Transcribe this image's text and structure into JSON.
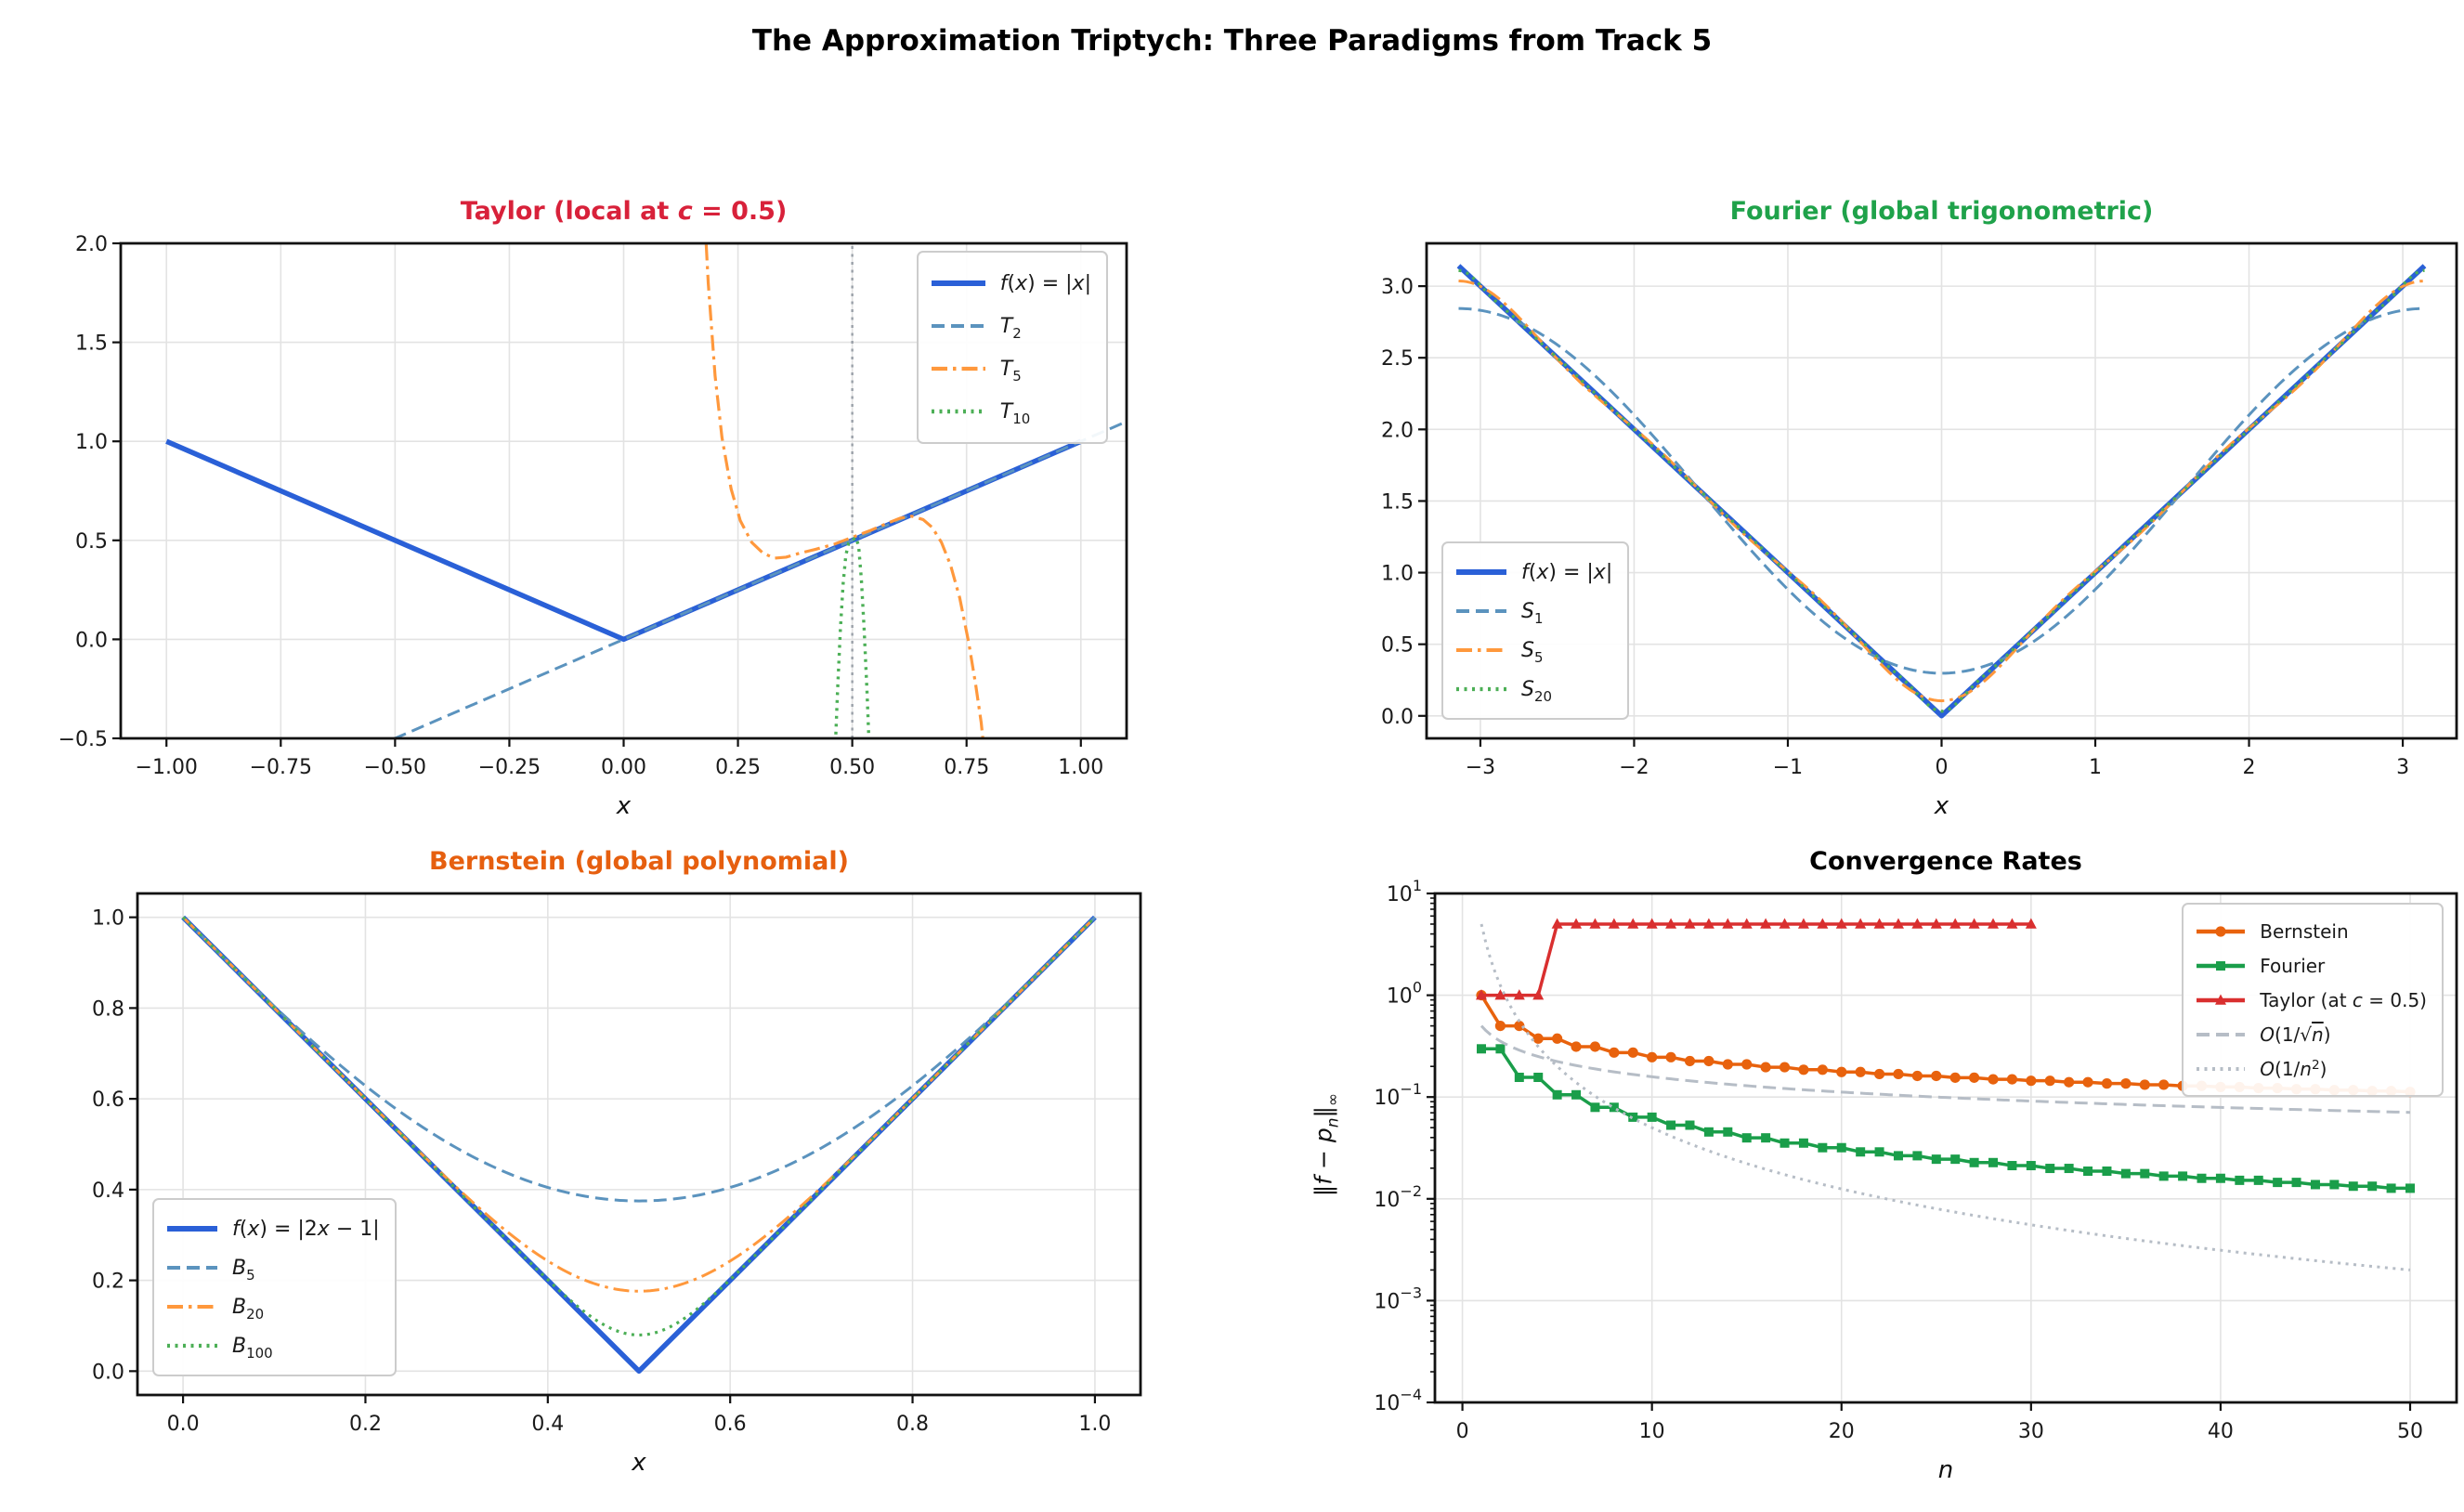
{
  "figure": {
    "title": "The Approximation Triptych: Three Paradigms from Track 5",
    "background": "#ffffff"
  },
  "colors": {
    "f_blue": "#2a60d7",
    "steel_dashed": "#5b93be",
    "orange_dashdot": "#ff983c",
    "green_dotted": "#4caf56",
    "taylor_title_red": "#d8213a",
    "fourier_title_green": "#1fa24a",
    "bernstein_title_orange": "#e65f0f",
    "conv_bernstein": "#e8620d",
    "conv_fourier": "#1a9e4a",
    "conv_taylor": "#d92f2f",
    "guide_gray": "#b6bdc6",
    "vline_gray": "#9aa0a8",
    "grid": "#e3e3e3",
    "spine": "#111111"
  },
  "chart_data": [
    {
      "id": "taylor",
      "type": "line",
      "title_parts": [
        {
          "t": "Taylor (local at "
        },
        {
          "t": "c",
          "italic": true
        },
        {
          "t": " = 0.5)"
        }
      ],
      "title_color": "#d8213a",
      "xlabel_parts": [
        {
          "t": "x",
          "italic": true
        }
      ],
      "xlim": [
        -1.1,
        1.1
      ],
      "ylim": [
        -0.5,
        2.0
      ],
      "xticks": [
        -1.0,
        -0.75,
        -0.5,
        -0.25,
        0.0,
        0.25,
        0.5,
        0.75,
        1.0
      ],
      "xtick_labels": [
        "−1.00",
        "−0.75",
        "−0.50",
        "−0.25",
        "0.00",
        "0.25",
        "0.50",
        "0.75",
        "1.00"
      ],
      "yticks": [
        -0.5,
        0.0,
        0.5,
        1.0,
        1.5,
        2.0
      ],
      "ytick_labels": [
        "−0.5",
        "0.0",
        "0.5",
        "1.0",
        "1.5",
        "2.0"
      ],
      "series": [
        {
          "name": "c-vline",
          "color": "#9aa0a8",
          "style": "dotted",
          "width": 2.4,
          "kind": "points",
          "legend": false,
          "points": [
            [
              0.5,
              -0.5
            ],
            [
              0.5,
              2.0
            ]
          ]
        },
        {
          "name": "f-abs",
          "label_parts": [
            {
              "t": "f",
              "italic": true
            },
            {
              "t": "("
            },
            {
              "t": "x",
              "italic": true
            },
            {
              "t": ") = |"
            },
            {
              "t": "x",
              "italic": true
            },
            {
              "t": "|"
            }
          ],
          "color": "#2a60d7",
          "style": "solid",
          "width": 5.5,
          "kind": "points",
          "points": [
            [
              -1,
              1
            ],
            [
              0,
              0
            ],
            [
              1,
              1
            ]
          ]
        },
        {
          "name": "T2",
          "label_parts": [
            {
              "t": "T",
              "italic": true
            },
            {
              "t": "2",
              "sub": true
            }
          ],
          "color": "#5b93be",
          "style": "dashed",
          "width": 3,
          "kind": "points",
          "points": [
            [
              -0.62,
              -0.62
            ],
            [
              1.1,
              1.1
            ]
          ]
        },
        {
          "name": "T5",
          "label_parts": [
            {
              "t": "T",
              "italic": true
            },
            {
              "t": "5",
              "sub": true
            }
          ],
          "color": "#ff983c",
          "style": "dashdot",
          "width": 3.2,
          "kind": "points",
          "points": [
            [
              0.17,
              2.45
            ],
            [
              0.185,
              1.8
            ],
            [
              0.2,
              1.33
            ],
            [
              0.215,
              1.02
            ],
            [
              0.235,
              0.76
            ],
            [
              0.255,
              0.6
            ],
            [
              0.28,
              0.49
            ],
            [
              0.305,
              0.435
            ],
            [
              0.33,
              0.41
            ],
            [
              0.355,
              0.415
            ],
            [
              0.385,
              0.435
            ],
            [
              0.42,
              0.455
            ],
            [
              0.46,
              0.48
            ],
            [
              0.5,
              0.515
            ],
            [
              0.54,
              0.55
            ],
            [
              0.575,
              0.585
            ],
            [
              0.605,
              0.612
            ],
            [
              0.63,
              0.622
            ],
            [
              0.655,
              0.605
            ],
            [
              0.675,
              0.565
            ],
            [
              0.695,
              0.49
            ],
            [
              0.715,
              0.375
            ],
            [
              0.735,
              0.21
            ],
            [
              0.755,
              -0.02
            ],
            [
              0.77,
              -0.23
            ],
            [
              0.782,
              -0.42
            ],
            [
              0.79,
              -0.6
            ]
          ]
        },
        {
          "name": "T10",
          "label_parts": [
            {
              "t": "T",
              "italic": true
            },
            {
              "t": "10",
              "sub": true
            }
          ],
          "color": "#4caf56",
          "style": "dotted",
          "width": 3.4,
          "kind": "points",
          "points": [
            [
              0.462,
              -0.6
            ],
            [
              0.468,
              -0.25
            ],
            [
              0.474,
              0.05
            ],
            [
              0.48,
              0.28
            ],
            [
              0.486,
              0.425
            ],
            [
              0.492,
              0.485
            ],
            [
              0.5,
              0.5
            ],
            [
              0.508,
              0.515
            ],
            [
              0.514,
              0.47
            ],
            [
              0.52,
              0.3
            ],
            [
              0.526,
              0.05
            ],
            [
              0.532,
              -0.25
            ],
            [
              0.538,
              -0.6
            ]
          ]
        }
      ]
    },
    {
      "id": "fourier",
      "type": "line",
      "title_parts": [
        {
          "t": "Fourier (global trigonometric)"
        }
      ],
      "title_color": "#1fa24a",
      "xlabel_parts": [
        {
          "t": "x",
          "italic": true
        }
      ],
      "xlim": [
        -3.35,
        3.35
      ],
      "ylim": [
        -0.157,
        3.299
      ],
      "xticks": [
        -3,
        -2,
        -1,
        0,
        1,
        2,
        3
      ],
      "xtick_labels": [
        "−3",
        "−2",
        "−1",
        "0",
        "1",
        "2",
        "3"
      ],
      "yticks": [
        0.0,
        0.5,
        1.0,
        1.5,
        2.0,
        2.5,
        3.0
      ],
      "ytick_labels": [
        "0.0",
        "0.5",
        "1.0",
        "1.5",
        "2.0",
        "2.5",
        "3.0"
      ],
      "series": [
        {
          "name": "f-abs",
          "label_parts": [
            {
              "t": "f",
              "italic": true
            },
            {
              "t": "("
            },
            {
              "t": "x",
              "italic": true
            },
            {
              "t": ") = |"
            },
            {
              "t": "x",
              "italic": true
            },
            {
              "t": "|"
            }
          ],
          "color": "#2a60d7",
          "style": "solid",
          "width": 5.5,
          "kind": "points",
          "points": [
            [
              -3.14159,
              3.14159
            ],
            [
              0,
              0
            ],
            [
              3.14159,
              3.14159
            ]
          ]
        },
        {
          "name": "S1",
          "label_parts": [
            {
              "t": "S",
              "italic": true
            },
            {
              "t": "1",
              "sub": true
            }
          ],
          "color": "#5b93be",
          "style": "dashed",
          "width": 3,
          "kind": "fourier",
          "n": 1
        },
        {
          "name": "S5",
          "label_parts": [
            {
              "t": "S",
              "italic": true
            },
            {
              "t": "5",
              "sub": true
            }
          ],
          "color": "#ff983c",
          "style": "dashdot",
          "width": 3,
          "kind": "fourier",
          "n": 5
        },
        {
          "name": "S20",
          "label_parts": [
            {
              "t": "S",
              "italic": true
            },
            {
              "t": "20",
              "sub": true
            }
          ],
          "color": "#4caf56",
          "style": "dotted",
          "width": 3.2,
          "kind": "fourier",
          "n": 20
        }
      ]
    },
    {
      "id": "bernstein",
      "type": "line",
      "title_parts": [
        {
          "t": "Bernstein (global polynomial)"
        }
      ],
      "title_color": "#e65f0f",
      "xlabel_parts": [
        {
          "t": "x",
          "italic": true
        }
      ],
      "xlim": [
        -0.05,
        1.05
      ],
      "ylim": [
        -0.0525,
        1.0525
      ],
      "xticks": [
        0.0,
        0.2,
        0.4,
        0.6,
        0.8,
        1.0
      ],
      "xtick_labels": [
        "0.0",
        "0.2",
        "0.4",
        "0.6",
        "0.8",
        "1.0"
      ],
      "yticks": [
        0.0,
        0.2,
        0.4,
        0.6,
        0.8,
        1.0
      ],
      "ytick_labels": [
        "0.0",
        "0.2",
        "0.4",
        "0.6",
        "0.8",
        "1.0"
      ],
      "series": [
        {
          "name": "f-abs2x1",
          "label_parts": [
            {
              "t": "f",
              "italic": true
            },
            {
              "t": "("
            },
            {
              "t": "x",
              "italic": true
            },
            {
              "t": ") = |2"
            },
            {
              "t": "x",
              "italic": true
            },
            {
              "t": " − 1|"
            }
          ],
          "color": "#2a60d7",
          "style": "solid",
          "width": 5.5,
          "kind": "points",
          "points": [
            [
              0,
              1
            ],
            [
              0.5,
              0
            ],
            [
              1,
              1
            ]
          ]
        },
        {
          "name": "B5",
          "label_parts": [
            {
              "t": "B",
              "italic": true
            },
            {
              "t": "5",
              "sub": true
            }
          ],
          "color": "#5b93be",
          "style": "dashed",
          "width": 3,
          "kind": "bernstein",
          "n": 5
        },
        {
          "name": "B20",
          "label_parts": [
            {
              "t": "B",
              "italic": true
            },
            {
              "t": "20",
              "sub": true
            }
          ],
          "color": "#ff983c",
          "style": "dashdot",
          "width": 3,
          "kind": "bernstein",
          "n": 20
        },
        {
          "name": "B100",
          "label_parts": [
            {
              "t": "B",
              "italic": true
            },
            {
              "t": "100",
              "sub": true
            }
          ],
          "color": "#4caf56",
          "style": "dotted",
          "width": 3.2,
          "kind": "bernstein",
          "n": 100
        }
      ]
    },
    {
      "id": "convergence",
      "type": "line",
      "yscale": "log",
      "title_parts": [
        {
          "t": "Convergence Rates"
        }
      ],
      "title_color": "#000000",
      "xlabel_parts": [
        {
          "t": "n",
          "italic": true
        }
      ],
      "ylabel_parts": [
        {
          "t": "‖"
        },
        {
          "t": "f",
          "italic": true
        },
        {
          "t": " − "
        },
        {
          "t": "p",
          "italic": true
        },
        {
          "t": "n",
          "sub": true,
          "italic": true
        },
        {
          "t": "‖"
        },
        {
          "t": "∞",
          "sub": true
        }
      ],
      "xlim": [
        -1.45,
        52.45
      ],
      "ylim_log": [
        -4,
        1
      ],
      "xticks": [
        0,
        10,
        20,
        30,
        40,
        50
      ],
      "xtick_labels": [
        "0",
        "10",
        "20",
        "30",
        "40",
        "50"
      ],
      "ytick_exponents": [
        1,
        0,
        -1,
        -2,
        -3,
        -4
      ],
      "series": [
        {
          "name": "bernstein-error",
          "label_parts": [
            {
              "t": "Bernstein"
            }
          ],
          "color": "#e8620d",
          "style": "solid",
          "width": 3.5,
          "marker": "circle",
          "kind": "data",
          "x_start": 1,
          "values": [
            1.0,
            0.5,
            0.5,
            0.375,
            0.375,
            0.3125,
            0.3125,
            0.2734,
            0.2734,
            0.2461,
            0.2461,
            0.2256,
            0.2256,
            0.2095,
            0.2095,
            0.1964,
            0.1964,
            0.1855,
            0.1855,
            0.1762,
            0.1762,
            0.1682,
            0.1682,
            0.1612,
            0.1612,
            0.155,
            0.155,
            0.1494,
            0.1494,
            0.1445,
            0.1445,
            0.1399,
            0.1399,
            0.1358,
            0.1358,
            0.1321,
            0.1321,
            0.1286,
            0.1286,
            0.1254,
            0.1254,
            0.1224,
            0.1224,
            0.1196,
            0.1196,
            0.117,
            0.117,
            0.1146,
            0.1146,
            0.1123
          ]
        },
        {
          "name": "fourier-error",
          "label_parts": [
            {
              "t": "Fourier"
            }
          ],
          "color": "#1a9e4a",
          "style": "solid",
          "width": 3.5,
          "marker": "square",
          "kind": "data",
          "x_start": 1,
          "values": [
            0.2976,
            0.2976,
            0.1561,
            0.1561,
            0.1052,
            0.1052,
            0.0792,
            0.0792,
            0.0634,
            0.0634,
            0.0529,
            0.0529,
            0.0454,
            0.0454,
            0.0397,
            0.0397,
            0.0353,
            0.0353,
            0.0318,
            0.0318,
            0.0289,
            0.0289,
            0.0265,
            0.0265,
            0.0245,
            0.0245,
            0.0227,
            0.0227,
            0.0212,
            0.0212,
            0.0199,
            0.0199,
            0.0187,
            0.0187,
            0.0177,
            0.0177,
            0.0167,
            0.0167,
            0.0159,
            0.0159,
            0.0152,
            0.0152,
            0.0145,
            0.0145,
            0.0138,
            0.0138,
            0.0133,
            0.0133,
            0.0127,
            0.0127
          ]
        },
        {
          "name": "taylor-error",
          "label_parts": [
            {
              "t": "Taylor (at "
            },
            {
              "t": "c",
              "italic": true
            },
            {
              "t": " = 0.5)"
            }
          ],
          "color": "#d92f2f",
          "style": "solid",
          "width": 3.5,
          "marker": "triangle",
          "kind": "data",
          "x_start": 1,
          "values": [
            1,
            1,
            1,
            1,
            5,
            5,
            5,
            5,
            5,
            5,
            5,
            5,
            5,
            5,
            5,
            5,
            5,
            5,
            5,
            5,
            5,
            5,
            5,
            5,
            5,
            5,
            5,
            5,
            5,
            5
          ]
        },
        {
          "name": "guide-inv-sqrt-n",
          "label_parts": [
            {
              "t": "O",
              "italic": true
            },
            {
              "t": "(1/√"
            },
            {
              "t": "n",
              "italic": true,
              "overline": true
            },
            {
              "t": ")"
            }
          ],
          "color": "#b6bdc6",
          "style": "dashed",
          "width": 3,
          "kind": "guide",
          "coef": 0.5,
          "exp": -0.5,
          "range": [
            1,
            50
          ]
        },
        {
          "name": "guide-inv-n2",
          "label_parts": [
            {
              "t": "O",
              "italic": true
            },
            {
              "t": "(1/"
            },
            {
              "t": "n",
              "italic": true
            },
            {
              "t": "2",
              "sup": true
            },
            {
              "t": ")"
            }
          ],
          "color": "#b6bdc6",
          "style": "dotted",
          "width": 3,
          "kind": "guide",
          "coef": 5,
          "exp": -2,
          "range": [
            1,
            50
          ]
        }
      ]
    }
  ]
}
